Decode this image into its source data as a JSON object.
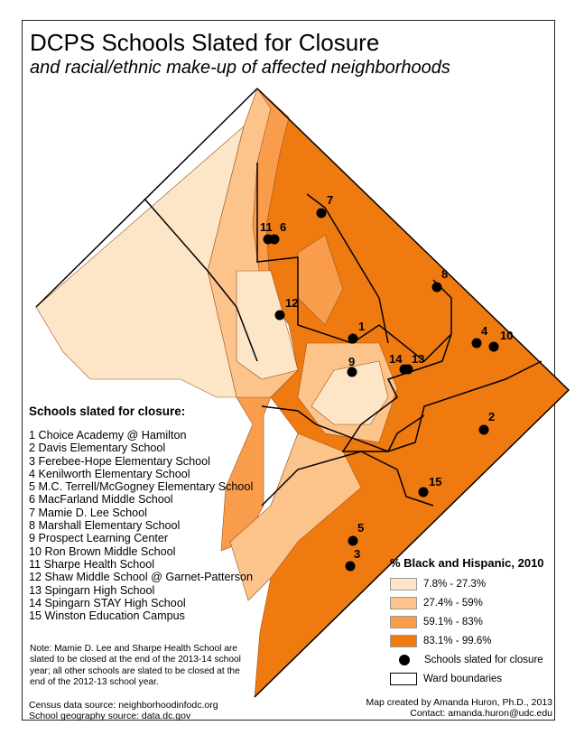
{
  "title": "DCPS Schools Slated for Closure",
  "subtitle": "and racial/ethnic make-up of affected neighborhoods",
  "schools_heading": "Schools slated for closure:",
  "schools": [
    {
      "num": "1",
      "name": "1 Choice Academy @ Hamilton"
    },
    {
      "num": "2",
      "name": "2 Davis Elementary School"
    },
    {
      "num": "3",
      "name": "3 Ferebee-Hope Elementary School"
    },
    {
      "num": "4",
      "name": "4 Kenilworth Elementary School"
    },
    {
      "num": "5",
      "name": "5 M.C. Terrell/McGogney Elementary School"
    },
    {
      "num": "6",
      "name": "6 MacFarland Middle School"
    },
    {
      "num": "7",
      "name": "7 Mamie D. Lee School"
    },
    {
      "num": "8",
      "name": "8 Marshall Elementary School"
    },
    {
      "num": "9",
      "name": "9 Prospect Learning Center"
    },
    {
      "num": "10",
      "name": "10 Ron Brown Middle School"
    },
    {
      "num": "11",
      "name": "11 Sharpe Health School"
    },
    {
      "num": "12",
      "name": "12 Shaw Middle School @ Garnet-Patterson"
    },
    {
      "num": "13",
      "name": "13 Spingarn High School"
    },
    {
      "num": "14",
      "name": "14 Spingarn STAY High School"
    },
    {
      "num": "15",
      "name": "15 Winston Education Campus"
    }
  ],
  "note": "Note: Mamie D. Lee and Sharpe Health School are slated to be closed at the end of the 2013-14 school year; all other schools are slated to be closed at the end of the 2012-13 school year.",
  "sources": [
    "Census data source: neighborhoodinfodc.org",
    "School geography source: data.dc.gov"
  ],
  "legend": {
    "title": "% Black and Hispanic, 2010",
    "classes": [
      {
        "label": "7.8% - 27.3%",
        "color": "#fde6c8"
      },
      {
        "label": "27.4% - 59%",
        "color": "#fcc38b"
      },
      {
        "label": "59.1% - 83%",
        "color": "#f99c4c"
      },
      {
        "label": "83.1% - 99.6%",
        "color": "#ef7a10"
      }
    ],
    "schools_label": "Schools slated for closure",
    "wards_label": "Ward boundaries"
  },
  "credit": [
    "Map created by Amanda Huron, Ph.D., 2013",
    "Contact: amanda.huron@udc.edu"
  ]
}
